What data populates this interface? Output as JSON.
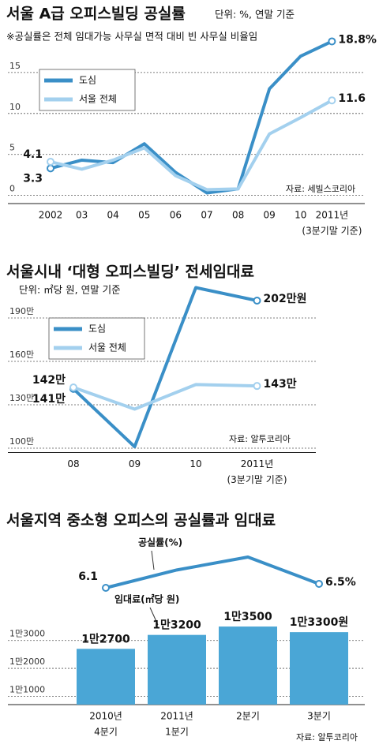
{
  "chart_data": [
    {
      "type": "line",
      "title": "서울 A급 오피스빌딩 공실률",
      "subtitle": "단위: %, 연말 기준",
      "note": "※공실률은 전체 임대가능 사무실 면적 대비 빈 사무실 비율임",
      "source": "자료: 세빌스코리아",
      "categories": [
        [
          "2002"
        ],
        [
          "03"
        ],
        [
          "04"
        ],
        [
          "05"
        ],
        [
          "06"
        ],
        [
          "07"
        ],
        [
          "08"
        ],
        [
          "09"
        ],
        [
          "10"
        ],
        [
          "2011년",
          "(3분기말 기준)"
        ]
      ],
      "ylim": [
        -1,
        20
      ],
      "yticks": [
        0,
        5,
        10,
        15
      ],
      "grid": true,
      "series": [
        {
          "name": "도심",
          "color": "#3a8fc7",
          "values": [
            3.3,
            4.3,
            4.0,
            6.3,
            2.8,
            0.3,
            0.8,
            13.0,
            17.0,
            18.8
          ],
          "value_labels": [
            "3.3",
            null,
            null,
            null,
            null,
            null,
            null,
            null,
            null,
            "18.8%"
          ]
        },
        {
          "name": "서울 전체",
          "color": "#a3d0ee",
          "values": [
            4.1,
            3.2,
            4.3,
            5.8,
            2.4,
            0.7,
            0.8,
            7.5,
            9.5,
            11.6
          ],
          "value_labels": [
            "4.1",
            null,
            null,
            null,
            null,
            null,
            null,
            null,
            null,
            "11.6"
          ]
        }
      ]
    },
    {
      "type": "line",
      "title": "서울시내 ‘대형 오피스빌딩’ 전세임대료",
      "subtitle": "단위: ㎡당 원, 연말 기준",
      "source": "자료: 알투코리아",
      "categories": [
        [
          "08"
        ],
        [
          "09"
        ],
        [
          "10"
        ],
        [
          "2011년",
          "(3분기말 기준)"
        ]
      ],
      "ylim": [
        970000,
        2200000
      ],
      "yticks": [
        {
          "value": 1000000,
          "label": "100만"
        },
        {
          "value": 1300000,
          "label": "130만"
        },
        {
          "value": 1600000,
          "label": "160만"
        },
        {
          "value": 1900000,
          "label": "190만"
        }
      ],
      "grid": true,
      "series": [
        {
          "name": "도심",
          "color": "#3a8fc7",
          "values": [
            1410000,
            1010000,
            2110000,
            2020000
          ],
          "value_labels": [
            "141만",
            null,
            null,
            "202만원"
          ]
        },
        {
          "name": "서울 전체",
          "color": "#a3d0ee",
          "values": [
            1420000,
            1270000,
            1440000,
            1430000
          ],
          "value_labels": [
            "142만",
            null,
            null,
            "143만"
          ]
        }
      ]
    },
    {
      "type": "combo",
      "title": "서울지역 중소형 오피스의 공실률과 임대료",
      "source": "자료: 알투코리아",
      "categories": [
        [
          "2010년",
          "4분기"
        ],
        [
          "2011년",
          "1분기"
        ],
        [
          "2분기"
        ],
        [
          "3분기"
        ]
      ],
      "line": {
        "name": "공실률(%)",
        "color": "#3a8fc7",
        "values": [
          6.1,
          7.9,
          9.2,
          6.5
        ],
        "value_labels": [
          "6.1",
          null,
          null,
          "6.5%"
        ]
      },
      "bars": {
        "name": "임대료(㎡당 원)",
        "color": "#4aa6d6",
        "values": [
          12700,
          13200,
          13500,
          13300
        ],
        "value_labels": [
          "1만2700",
          "1만3200",
          "1만3500",
          "1만3300원"
        ]
      },
      "ylim": [
        10700,
        13700
      ],
      "yticks": [
        {
          "value": 11000,
          "label": "1만1000"
        },
        {
          "value": 12000,
          "label": "1만2000"
        },
        {
          "value": 13000,
          "label": "1만3000"
        }
      ],
      "grid": true
    }
  ]
}
